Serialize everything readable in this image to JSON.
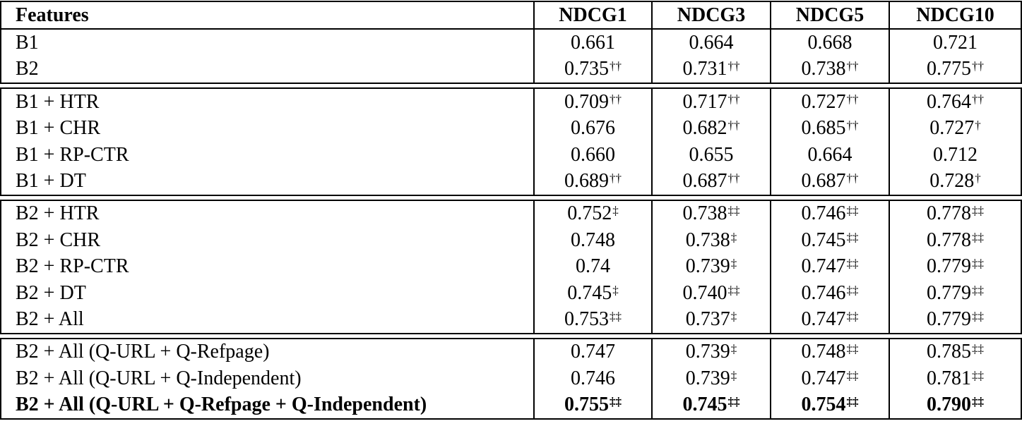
{
  "table": {
    "header": [
      "Features",
      "NDCG1",
      "NDCG3",
      "NDCG5",
      "NDCG10"
    ],
    "groups": [
      [
        {
          "label": "B1",
          "cells": [
            {
              "value": "0.661"
            },
            {
              "value": "0.664"
            },
            {
              "value": "0.668"
            },
            {
              "value": "0.721"
            }
          ]
        },
        {
          "label": "B2",
          "cells": [
            {
              "value": "0.735",
              "mark": "††"
            },
            {
              "value": "0.731",
              "mark": "††"
            },
            {
              "value": "0.738",
              "mark": "††"
            },
            {
              "value": "0.775",
              "mark": "††"
            }
          ]
        }
      ],
      [
        {
          "label": "B1 + HTR",
          "cells": [
            {
              "value": "0.709",
              "mark": "††"
            },
            {
              "value": "0.717",
              "mark": "††"
            },
            {
              "value": "0.727",
              "mark": "††"
            },
            {
              "value": "0.764",
              "mark": "††"
            }
          ]
        },
        {
          "label": "B1 + CHR",
          "cells": [
            {
              "value": "0.676"
            },
            {
              "value": "0.682",
              "mark": "††"
            },
            {
              "value": "0.685",
              "mark": "††"
            },
            {
              "value": "0.727",
              "mark": "†"
            }
          ]
        },
        {
          "label": "B1 + RP-CTR",
          "cells": [
            {
              "value": "0.660"
            },
            {
              "value": "0.655"
            },
            {
              "value": "0.664"
            },
            {
              "value": "0.712"
            }
          ]
        },
        {
          "label": "B1 + DT",
          "cells": [
            {
              "value": "0.689",
              "mark": "††"
            },
            {
              "value": "0.687",
              "mark": "††"
            },
            {
              "value": "0.687",
              "mark": "††"
            },
            {
              "value": "0.728",
              "mark": "†"
            }
          ]
        }
      ],
      [
        {
          "label": "B2 + HTR",
          "cells": [
            {
              "value": "0.752",
              "mark": "‡"
            },
            {
              "value": "0.738",
              "mark": "‡‡"
            },
            {
              "value": "0.746",
              "mark": "‡‡"
            },
            {
              "value": "0.778",
              "mark": "‡‡"
            }
          ]
        },
        {
          "label": "B2 + CHR",
          "cells": [
            {
              "value": "0.748"
            },
            {
              "value": "0.738",
              "mark": "‡"
            },
            {
              "value": "0.745",
              "mark": "‡‡"
            },
            {
              "value": "0.778",
              "mark": "‡‡"
            }
          ]
        },
        {
          "label": "B2 + RP-CTR",
          "cells": [
            {
              "value": "0.74"
            },
            {
              "value": "0.739",
              "mark": "‡"
            },
            {
              "value": "0.747",
              "mark": "‡‡"
            },
            {
              "value": "0.779",
              "mark": "‡‡"
            }
          ]
        },
        {
          "label": "B2 + DT",
          "cells": [
            {
              "value": "0.745",
              "mark": "‡"
            },
            {
              "value": "0.740",
              "mark": "‡‡"
            },
            {
              "value": "0.746",
              "mark": "‡‡"
            },
            {
              "value": "0.779",
              "mark": "‡‡"
            }
          ]
        },
        {
          "label": "B2 + All",
          "cells": [
            {
              "value": "0.753",
              "mark": "‡‡"
            },
            {
              "value": "0.737",
              "mark": "‡"
            },
            {
              "value": "0.747",
              "mark": "‡‡"
            },
            {
              "value": "0.779",
              "mark": "‡‡"
            }
          ]
        }
      ],
      [
        {
          "label": "B2 + All (Q-URL + Q-Refpage)",
          "cells": [
            {
              "value": "0.747"
            },
            {
              "value": "0.739",
              "mark": "‡"
            },
            {
              "value": "0.748",
              "mark": "‡‡"
            },
            {
              "value": "0.785",
              "mark": "‡‡"
            }
          ]
        },
        {
          "label": "B2 + All (Q-URL + Q-Independent)",
          "cells": [
            {
              "value": "0.746"
            },
            {
              "value": "0.739",
              "mark": "‡"
            },
            {
              "value": "0.747",
              "mark": "‡‡"
            },
            {
              "value": "0.781",
              "mark": "‡‡"
            }
          ]
        },
        {
          "label": "B2 + All (Q-URL + Q-Refpage + Q-Independent)",
          "bold": true,
          "cells": [
            {
              "value": "0.755",
              "mark": "‡‡"
            },
            {
              "value": "0.745",
              "mark": "‡‡"
            },
            {
              "value": "0.754",
              "mark": "‡‡"
            },
            {
              "value": "0.790",
              "mark": "‡‡"
            }
          ]
        }
      ]
    ]
  }
}
